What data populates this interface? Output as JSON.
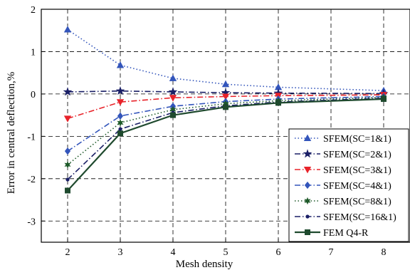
{
  "chart_data": {
    "type": "line",
    "title": "",
    "xlabel": "Mesh density",
    "ylabel": "Error in central deflection,%",
    "x": [
      2,
      3,
      4,
      5,
      6,
      7,
      8
    ],
    "xticks": [
      2,
      3,
      4,
      5,
      6,
      7,
      8
    ],
    "yticks": [
      -3,
      -2,
      -1,
      0,
      1,
      2
    ],
    "xlim": [
      1.5,
      8.5
    ],
    "ylim": [
      -3.5,
      2
    ],
    "grid": true,
    "legend_position": "bottom-right",
    "series": [
      {
        "name": "SFEM(SC=1&1)",
        "x": [
          2,
          3,
          4,
          5,
          6,
          8
        ],
        "values": [
          1.52,
          0.68,
          0.37,
          0.23,
          0.16,
          0.08
        ],
        "color": "#3355bb",
        "dash": "dotted",
        "marker": "triangle-up"
      },
      {
        "name": "SFEM(SC=2&1)",
        "x": [
          2,
          3,
          4,
          5,
          6,
          8
        ],
        "values": [
          0.05,
          0.07,
          0.05,
          0.03,
          0.02,
          0.01
        ],
        "color": "#1a1f66",
        "dash": "dashdot",
        "marker": "star"
      },
      {
        "name": "SFEM(SC=3&1)",
        "x": [
          2,
          3,
          4,
          5,
          6,
          8
        ],
        "values": [
          -0.58,
          -0.19,
          -0.09,
          -0.06,
          -0.04,
          -0.02
        ],
        "color": "#e8232a",
        "dash": "dashdot",
        "marker": "triangle-down"
      },
      {
        "name": "SFEM(SC=4&1)",
        "x": [
          2,
          3,
          4,
          5,
          6,
          8
        ],
        "values": [
          -1.35,
          -0.52,
          -0.29,
          -0.18,
          -0.12,
          -0.06
        ],
        "color": "#3355bb",
        "dash": "dashdot",
        "marker": "diamond"
      },
      {
        "name": "SFEM(SC=8&1)",
        "x": [
          2,
          3,
          4,
          5,
          6,
          8
        ],
        "values": [
          -1.67,
          -0.68,
          -0.37,
          -0.23,
          -0.16,
          -0.08
        ],
        "color": "#1f5a2a",
        "dash": "dotted",
        "marker": "hexagram"
      },
      {
        "name": "SFEM(SC=16&1)",
        "x": [
          2,
          3,
          4,
          5,
          6,
          8
        ],
        "values": [
          -2.02,
          -0.83,
          -0.44,
          -0.28,
          -0.19,
          -0.1
        ],
        "color": "#1a1f66",
        "dash": "dashdot",
        "marker": "small-dot"
      },
      {
        "name": "FEM Q4-R",
        "x": [
          2,
          3,
          4,
          5,
          6,
          8
        ],
        "values": [
          -2.28,
          -0.93,
          -0.5,
          -0.31,
          -0.21,
          -0.12
        ],
        "color": "#1f4a2e",
        "dash": "solid",
        "marker": "square"
      }
    ]
  }
}
